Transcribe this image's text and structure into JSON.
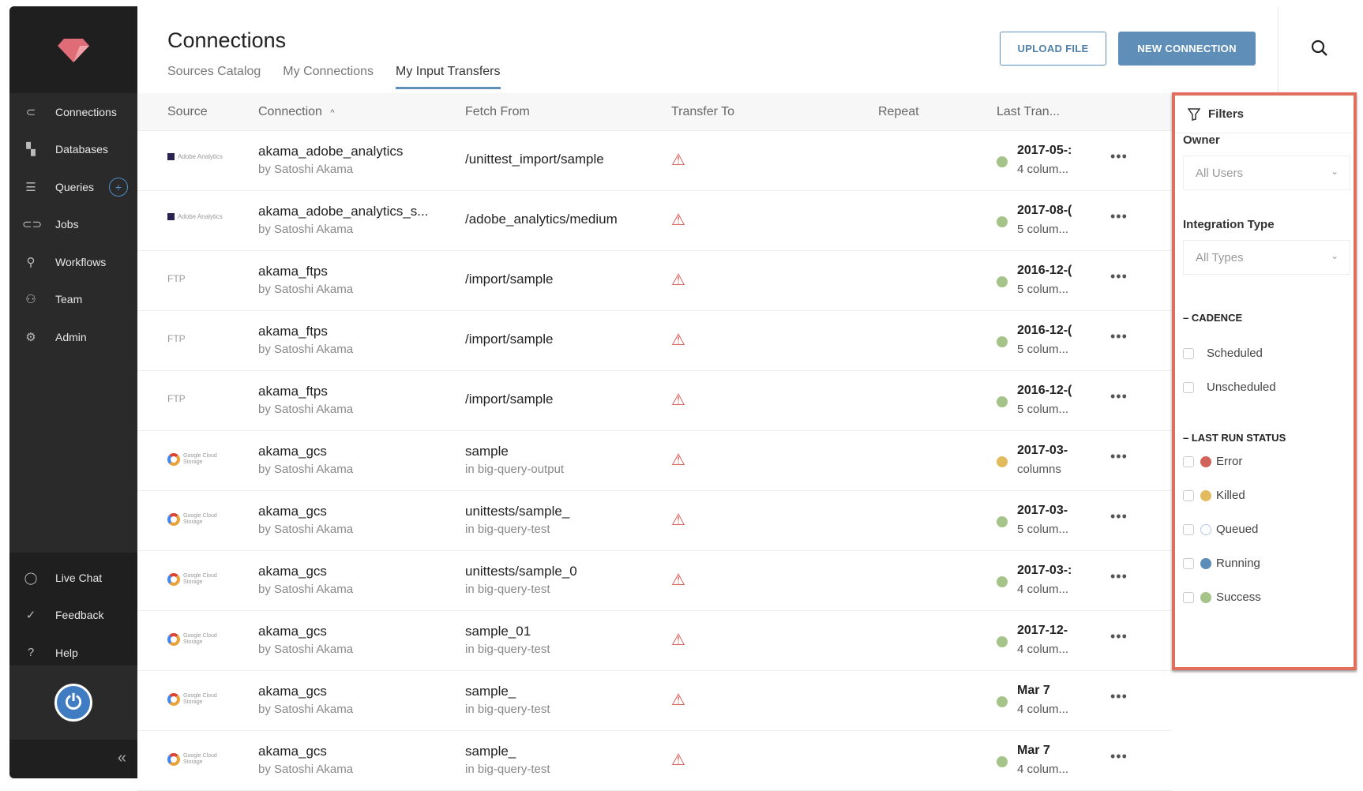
{
  "sidebar": {
    "items": [
      {
        "label": "Connections",
        "icon": "plug-icon"
      },
      {
        "label": "Databases",
        "icon": "grid-icon"
      },
      {
        "label": "Queries",
        "icon": "list-icon"
      },
      {
        "label": "Jobs",
        "icon": "pill-icon"
      },
      {
        "label": "Workflows",
        "icon": "workflow-icon"
      },
      {
        "label": "Team",
        "icon": "team-icon"
      },
      {
        "label": "Admin",
        "icon": "gear-icon"
      }
    ],
    "bottom": [
      {
        "label": "Live Chat",
        "icon": "chat-icon"
      },
      {
        "label": "Feedback",
        "icon": "feedback-icon"
      },
      {
        "label": "Help",
        "icon": "help-icon"
      }
    ],
    "collapse": "«"
  },
  "header": {
    "title": "Connections",
    "tabs": [
      "Sources Catalog",
      "My Connections",
      "My Input Transfers"
    ],
    "active_tab": "My Input Transfers",
    "upload": "UPLOAD FILE",
    "new": "NEW CONNECTION"
  },
  "table": {
    "columns": [
      "Source",
      "Connection",
      "Fetch From",
      "Transfer To",
      "Repeat",
      "Last Tran..."
    ],
    "sort_indicator": "^",
    "rows": [
      {
        "source": "Adobe Analytics",
        "name": "akama_adobe_analytics",
        "owner": "by Satoshi Akama",
        "fetch": "/unittest_import/sample",
        "fetch_sub": "",
        "last": "2017-05-:",
        "cols": "4 colum...",
        "status": "success"
      },
      {
        "source": "Adobe Analytics",
        "name": "akama_adobe_analytics_s...",
        "owner": "by Satoshi Akama",
        "fetch": "/adobe_analytics/medium",
        "fetch_sub": "",
        "last": "2017-08-(",
        "cols": "5 colum...",
        "status": "success"
      },
      {
        "source": "FTP",
        "name": "akama_ftps",
        "owner": "by Satoshi Akama",
        "fetch": "/import/sample",
        "fetch_sub": "",
        "last": "2016-12-(",
        "cols": "5 colum...",
        "status": "success"
      },
      {
        "source": "FTP",
        "name": "akama_ftps",
        "owner": "by Satoshi Akama",
        "fetch": "/import/sample",
        "fetch_sub": "",
        "last": "2016-12-(",
        "cols": "5 colum...",
        "status": "success"
      },
      {
        "source": "FTP",
        "name": "akama_ftps",
        "owner": "by Satoshi Akama",
        "fetch": "/import/sample",
        "fetch_sub": "",
        "last": "2016-12-(",
        "cols": "5 colum...",
        "status": "success"
      },
      {
        "source": "Google Cloud Storage",
        "name": "akama_gcs",
        "owner": "by Satoshi Akama",
        "fetch": "sample",
        "fetch_sub": "in big-query-output",
        "last": "2017-03-",
        "cols": "columns",
        "status": "killed"
      },
      {
        "source": "Google Cloud Storage",
        "name": "akama_gcs",
        "owner": "by Satoshi Akama",
        "fetch": "unittests/sample_",
        "fetch_sub": "in big-query-test",
        "last": "2017-03-",
        "cols": "5 colum...",
        "status": "success"
      },
      {
        "source": "Google Cloud Storage",
        "name": "akama_gcs",
        "owner": "by Satoshi Akama",
        "fetch": "unittests/sample_0",
        "fetch_sub": "in big-query-test",
        "last": "2017-03-:",
        "cols": "4 colum...",
        "status": "success"
      },
      {
        "source": "Google Cloud Storage",
        "name": "akama_gcs",
        "owner": "by Satoshi Akama",
        "fetch": "sample_01",
        "fetch_sub": "in big-query-test",
        "last": "2017-12-",
        "cols": "4 colum...",
        "status": "success"
      },
      {
        "source": "Google Cloud Storage",
        "name": "akama_gcs",
        "owner": "by Satoshi Akama",
        "fetch": "sample_",
        "fetch_sub": "in big-query-test",
        "last": "Mar 7",
        "cols": "4 colum...",
        "status": "success"
      },
      {
        "source": "Google Cloud Storage",
        "name": "akama_gcs",
        "owner": "by Satoshi Akama",
        "fetch": "sample_",
        "fetch_sub": "in big-query-test",
        "last": "Mar 7",
        "cols": "4 colum...",
        "status": "success"
      }
    ]
  },
  "filters": {
    "title": "Filters",
    "owner_label": "Owner",
    "owner_value": "All Users",
    "type_label": "Integration Type",
    "type_value": "All Types",
    "cadence": "CADENCE",
    "cadence_options": [
      "Scheduled",
      "Unscheduled"
    ],
    "status": "LAST RUN STATUS",
    "status_options": [
      {
        "label": "Error",
        "color": "#d0635a"
      },
      {
        "label": "Killed",
        "color": "#e2bb5f"
      },
      {
        "label": "Queued",
        "color": "#ffffff"
      },
      {
        "label": "Running",
        "color": "#5b8db8"
      },
      {
        "label": "Success",
        "color": "#a6c48a"
      }
    ]
  },
  "colors": {
    "success": "#a6c48a",
    "killed": "#e2bb5f",
    "accent": "#5f8fb8",
    "highlight": "#e0705e"
  }
}
